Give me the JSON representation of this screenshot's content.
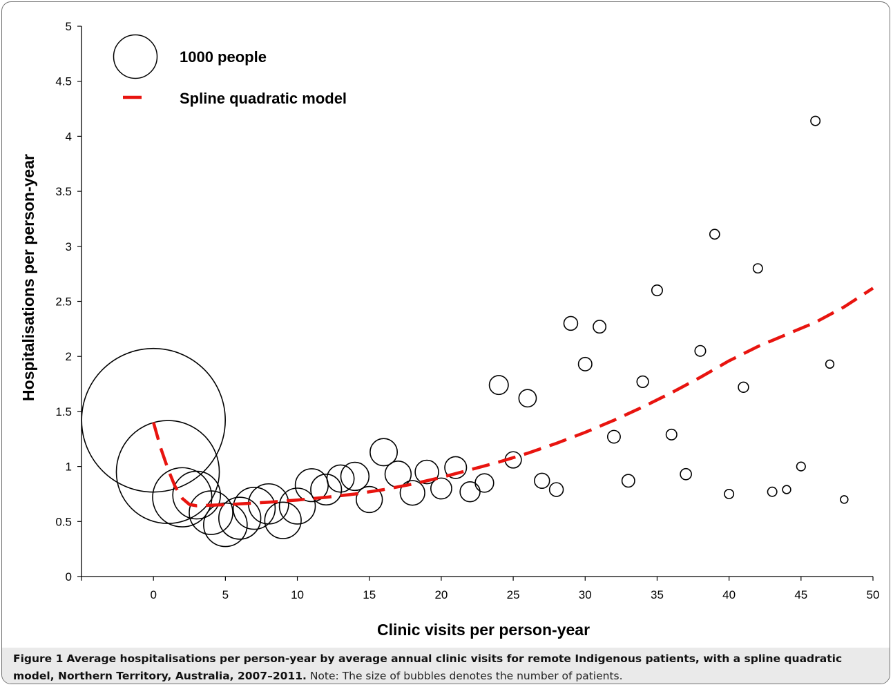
{
  "chart_data": {
    "type": "scatter",
    "xlabel": "Clinic visits per person-year",
    "ylabel": "Hospitalisations per person-year",
    "xlim": [
      -5,
      50
    ],
    "ylim": [
      0,
      5
    ],
    "x_ticks": [
      "0",
      "5",
      "10",
      "15",
      "20",
      "25",
      "30",
      "35",
      "40",
      "45",
      "50"
    ],
    "y_ticks": [
      "0",
      "0.5",
      "1",
      "1.5",
      "2",
      "2.5",
      "3",
      "3.5",
      "4",
      "4.5",
      "5"
    ],
    "grid": false,
    "legend_position": "top-left",
    "legend": {
      "bubble_label": "1000 people",
      "bubble_reference_size": 1000,
      "line_label": "Spline quadratic model"
    },
    "bubble_color": "#000000",
    "line_color": "#e8140f",
    "bubbles": [
      {
        "x": 0,
        "y": 1.42,
        "size": 10900
      },
      {
        "x": 1,
        "y": 0.95,
        "size": 5600
      },
      {
        "x": 2,
        "y": 0.72,
        "size": 1850
      },
      {
        "x": 3,
        "y": 0.74,
        "size": 1200
      },
      {
        "x": 4,
        "y": 0.58,
        "size": 1000
      },
      {
        "x": 5,
        "y": 0.47,
        "size": 1000
      },
      {
        "x": 6,
        "y": 0.53,
        "size": 930
      },
      {
        "x": 7,
        "y": 0.62,
        "size": 930
      },
      {
        "x": 8,
        "y": 0.66,
        "size": 850
      },
      {
        "x": 9,
        "y": 0.51,
        "size": 700
      },
      {
        "x": 10,
        "y": 0.64,
        "size": 680
      },
      {
        "x": 11,
        "y": 0.83,
        "size": 570
      },
      {
        "x": 12,
        "y": 0.79,
        "size": 500
      },
      {
        "x": 13,
        "y": 0.89,
        "size": 390
      },
      {
        "x": 14,
        "y": 0.91,
        "size": 420
      },
      {
        "x": 15,
        "y": 0.7,
        "size": 360
      },
      {
        "x": 16,
        "y": 1.13,
        "size": 390
      },
      {
        "x": 17,
        "y": 0.93,
        "size": 360
      },
      {
        "x": 18,
        "y": 0.76,
        "size": 320
      },
      {
        "x": 19,
        "y": 0.95,
        "size": 290
      },
      {
        "x": 20,
        "y": 0.8,
        "size": 230
      },
      {
        "x": 21,
        "y": 0.99,
        "size": 250
      },
      {
        "x": 22,
        "y": 0.77,
        "size": 210
      },
      {
        "x": 23,
        "y": 0.85,
        "size": 180
      },
      {
        "x": 24,
        "y": 1.74,
        "size": 190
      },
      {
        "x": 25,
        "y": 1.06,
        "size": 140
      },
      {
        "x": 26,
        "y": 1.62,
        "size": 160
      },
      {
        "x": 27,
        "y": 0.87,
        "size": 120
      },
      {
        "x": 28,
        "y": 0.79,
        "size": 100
      },
      {
        "x": 29,
        "y": 2.3,
        "size": 100
      },
      {
        "x": 30,
        "y": 1.93,
        "size": 95
      },
      {
        "x": 31,
        "y": 2.27,
        "size": 85
      },
      {
        "x": 32,
        "y": 1.27,
        "size": 85
      },
      {
        "x": 33,
        "y": 0.87,
        "size": 85
      },
      {
        "x": 34,
        "y": 1.77,
        "size": 70
      },
      {
        "x": 35,
        "y": 2.6,
        "size": 60
      },
      {
        "x": 36,
        "y": 1.29,
        "size": 60
      },
      {
        "x": 37,
        "y": 0.93,
        "size": 65
      },
      {
        "x": 38,
        "y": 2.05,
        "size": 60
      },
      {
        "x": 39,
        "y": 3.11,
        "size": 50
      },
      {
        "x": 40,
        "y": 0.75,
        "size": 45
      },
      {
        "x": 41,
        "y": 1.72,
        "size": 55
      },
      {
        "x": 42,
        "y": 2.8,
        "size": 45
      },
      {
        "x": 43,
        "y": 0.77,
        "size": 45
      },
      {
        "x": 44,
        "y": 0.79,
        "size": 35
      },
      {
        "x": 45,
        "y": 1.0,
        "size": 40
      },
      {
        "x": 46,
        "y": 4.14,
        "size": 45
      },
      {
        "x": 47,
        "y": 1.93,
        "size": 35
      },
      {
        "x": 48,
        "y": 0.7,
        "size": 30
      }
    ],
    "spline": {
      "x": [
        0,
        0.5,
        1,
        1.5,
        2,
        2.5,
        3,
        4,
        5,
        6,
        8,
        10,
        12,
        14,
        16,
        18,
        20,
        22,
        24,
        26,
        28,
        30,
        32,
        34,
        36,
        38,
        40,
        42,
        44,
        46,
        48,
        50
      ],
      "y": [
        1.4,
        1.17,
        0.98,
        0.82,
        0.71,
        0.655,
        0.643,
        0.648,
        0.653,
        0.66,
        0.675,
        0.695,
        0.72,
        0.75,
        0.79,
        0.84,
        0.9,
        0.97,
        1.04,
        1.12,
        1.21,
        1.31,
        1.42,
        1.54,
        1.67,
        1.81,
        1.96,
        2.09,
        2.2,
        2.31,
        2.45,
        2.62
      ]
    }
  },
  "caption": {
    "label": "Figure 1",
    "title": "Average hospitalisations per person-year by average annual clinic visits for remote Indigenous patients, with a spline quadratic model, Northern Territory, Australia, 2007–2011.",
    "note": "Note: The size of bubbles denotes the number of patients."
  }
}
